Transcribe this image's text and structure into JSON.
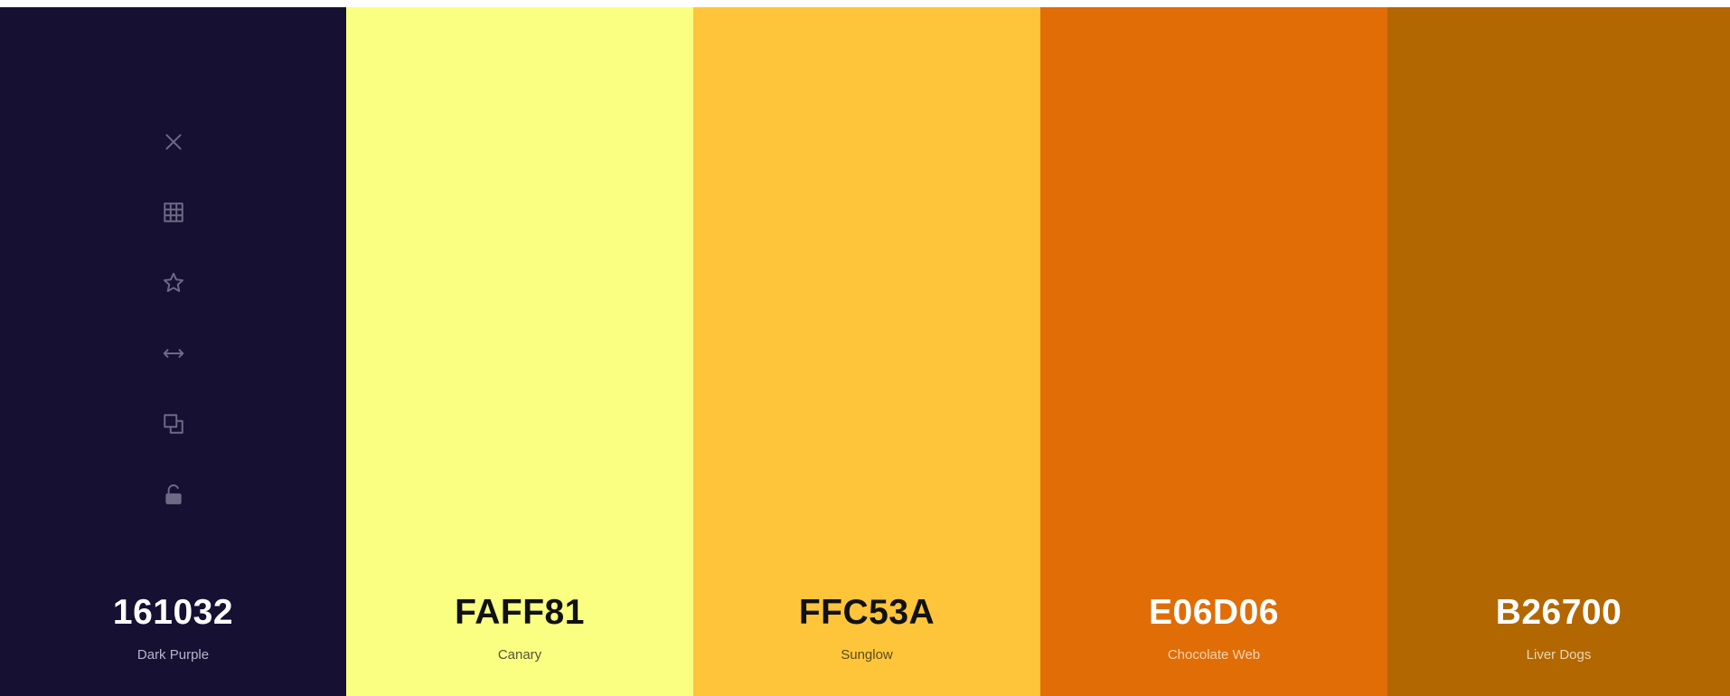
{
  "palette": {
    "colors": [
      {
        "hex": "161032",
        "name": "Dark Purple",
        "bg": "#161032",
        "text": "#ffffff",
        "subtext": "#b8b4c8"
      },
      {
        "hex": "FAFF81",
        "name": "Canary",
        "bg": "#FAFF81",
        "text": "#111111",
        "subtext": "#555533"
      },
      {
        "hex": "FFC53A",
        "name": "Sunglow",
        "bg": "#FFC53A",
        "text": "#111111",
        "subtext": "#5a4a1a"
      },
      {
        "hex": "E06D06",
        "name": "Chocolate Web",
        "bg": "#E06D06",
        "text": "#ffffff",
        "subtext": "#f6d4b4"
      },
      {
        "hex": "B26700",
        "name": "Liver Dogs",
        "bg": "#B26700",
        "text": "#ffffff",
        "subtext": "#ecd6b4"
      }
    ],
    "tool_icons": [
      "close-icon",
      "grid-icon",
      "star-icon",
      "drag-arrows-icon",
      "copy-icon",
      "unlock-icon"
    ],
    "icon_color": "#6e6a86"
  }
}
